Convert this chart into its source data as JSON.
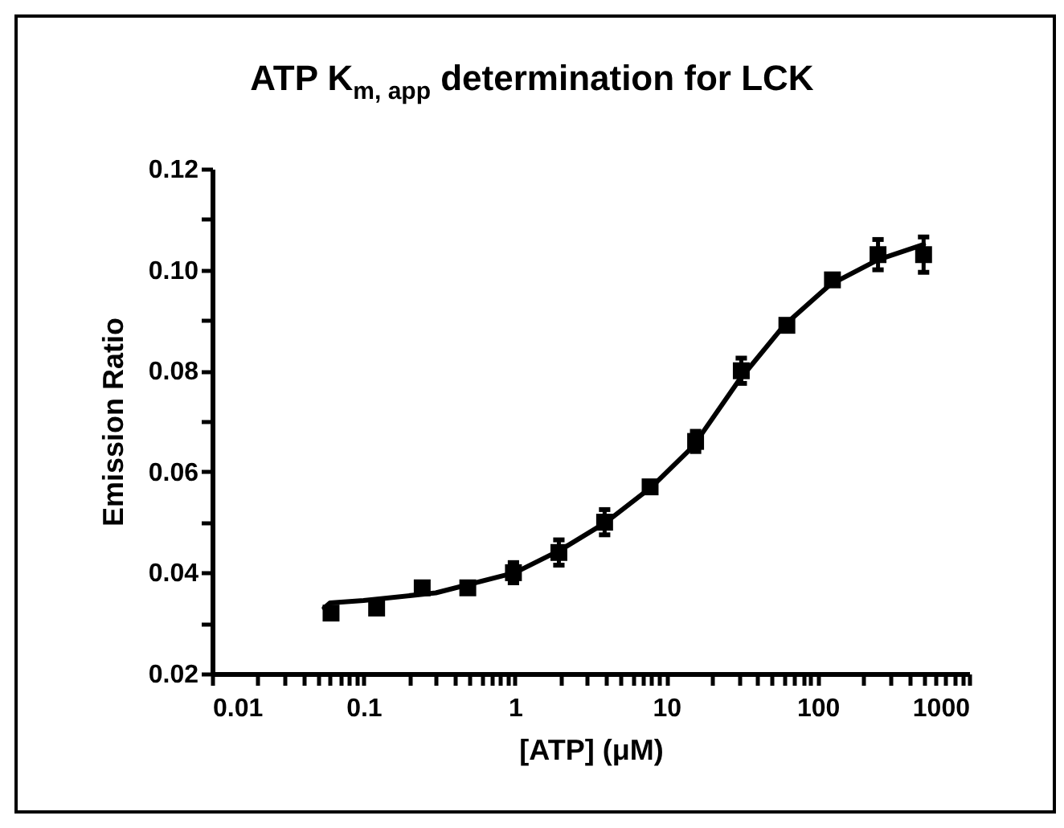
{
  "chart_data": {
    "type": "scatter",
    "title": "ATP K$_{m, app}$ determination for LCK",
    "xlabel": "[ATP] (μM)",
    "ylabel": "Emission Ratio",
    "log": "x",
    "grid": false,
    "xlim": [
      0.01,
      1000
    ],
    "ylim": [
      0.02,
      0.12
    ],
    "xticks": [
      0.01,
      {
        "value": 0.02,
        "label": null
      },
      {
        "value": 0.03,
        "label": null
      },
      {
        "value": 0.04,
        "label": null
      },
      {
        "value": 0.05,
        "label": null
      },
      {
        "value": 0.06,
        "label": null
      },
      {
        "value": 0.07,
        "label": null
      },
      {
        "value": 0.08,
        "label": null
      },
      {
        "value": 0.09,
        "label": null
      },
      0.1,
      {
        "value": 0.2,
        "label": null
      },
      {
        "value": 0.3,
        "label": null
      },
      {
        "value": 0.4,
        "label": null
      },
      {
        "value": 0.5,
        "label": null
      },
      {
        "value": 0.6,
        "label": null
      },
      {
        "value": 0.7,
        "label": null
      },
      {
        "value": 0.8,
        "label": null
      },
      {
        "value": 0.9,
        "label": null
      },
      1,
      {
        "value": 2,
        "label": null
      },
      {
        "value": 3,
        "label": null
      },
      {
        "value": 4,
        "label": null
      },
      {
        "value": 5,
        "label": null
      },
      {
        "value": 6,
        "label": null
      },
      {
        "value": 7,
        "label": null
      },
      {
        "value": 8,
        "label": null
      },
      {
        "value": 9,
        "label": null
      },
      10,
      {
        "value": 20,
        "label": null
      },
      {
        "value": 30,
        "label": null
      },
      {
        "value": 40,
        "label": null
      },
      {
        "value": 50,
        "label": null
      },
      {
        "value": 60,
        "label": null
      },
      {
        "value": 70,
        "label": null
      },
      {
        "value": 80,
        "label": null
      },
      {
        "value": 90,
        "label": null
      },
      100,
      {
        "value": 200,
        "label": null
      },
      {
        "value": 300,
        "label": null
      },
      {
        "value": 400,
        "label": null
      },
      {
        "value": 500,
        "label": null
      },
      {
        "value": 600,
        "label": null
      },
      {
        "value": 700,
        "label": null
      },
      {
        "value": 800,
        "label": null
      },
      {
        "value": 900,
        "label": null
      },
      1000
    ],
    "yticks": [
      0.02,
      {
        "value": 0.03,
        "label": null
      },
      0.04,
      {
        "value": 0.05,
        "label": null
      },
      0.06,
      {
        "value": 0.07,
        "label": null
      },
      0.08,
      {
        "value": 0.09,
        "label": null
      },
      {
        "value": 0.1,
        "label": "0.10"
      },
      {
        "value": 0.11,
        "label": null
      },
      0.12
    ],
    "series": [
      {
        "type": "scatter",
        "color": "#000000",
        "marker": "square",
        "x": [
          0.061,
          0.122,
          0.244,
          0.488,
          0.977,
          1.95,
          3.91,
          7.81,
          15.6,
          31.25,
          62.5,
          125,
          250,
          500
        ],
        "values": [
          0.032,
          0.033,
          0.037,
          0.037,
          0.04,
          0.044,
          0.05,
          0.057,
          0.066,
          0.08,
          0.089,
          0.098,
          0.103,
          0.103
        ],
        "errors": [
          null,
          null,
          null,
          null,
          0.002,
          0.0025,
          0.0025,
          null,
          0.002,
          0.0025,
          0.001,
          null,
          0.003,
          0.0035
        ]
      },
      {
        "type": "line",
        "color": "#000000",
        "line_style": "solid",
        "x": [
          0.055,
          0.06,
          0.1,
          0.3,
          1,
          2,
          4,
          8,
          15,
          30,
          60,
          120,
          250,
          500
        ],
        "values": [
          0.033,
          0.034,
          0.0345,
          0.036,
          0.04,
          0.0445,
          0.05,
          0.057,
          0.065,
          0.078,
          0.089,
          0.097,
          0.102,
          0.105
        ]
      }
    ]
  }
}
